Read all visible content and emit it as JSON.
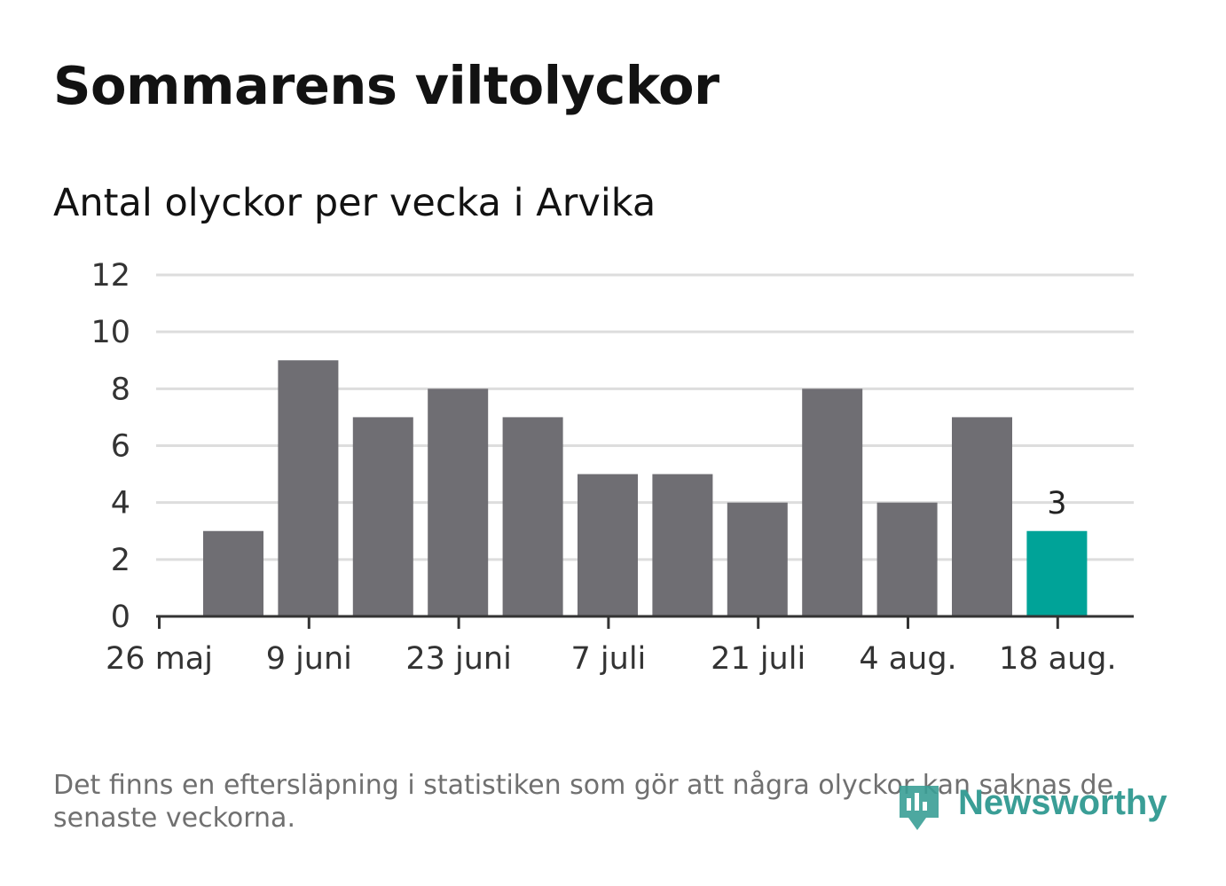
{
  "chart_data": {
    "type": "bar",
    "title": "Sommarens viltolyckor",
    "subtitle": "Antal olyckor per vecka i Arvika",
    "xlabel": "",
    "ylabel": "",
    "x_tick_labels": [
      "26 maj",
      "9 juni",
      "23 juni",
      "7 juli",
      "21 juli",
      "4 aug.",
      "18 aug."
    ],
    "y_ticks": [
      0,
      2,
      4,
      6,
      8,
      10,
      12
    ],
    "ylim": [
      0,
      12
    ],
    "values": [
      3,
      9,
      7,
      8,
      7,
      5,
      5,
      4,
      8,
      4,
      7,
      3
    ],
    "highlight_index": 11,
    "highlight_label": "3",
    "grid": true,
    "colors": {
      "bar": "#6f6e73",
      "highlight": "#00a398",
      "grid": "#dddddd",
      "axis": "#333333"
    }
  },
  "footnote": "Det finns en eftersläpning i statistiken som gör att några olyckor kan saknas de senaste veckorna.",
  "brand": {
    "name": "Newsworthy",
    "color": "#3a9e96"
  }
}
